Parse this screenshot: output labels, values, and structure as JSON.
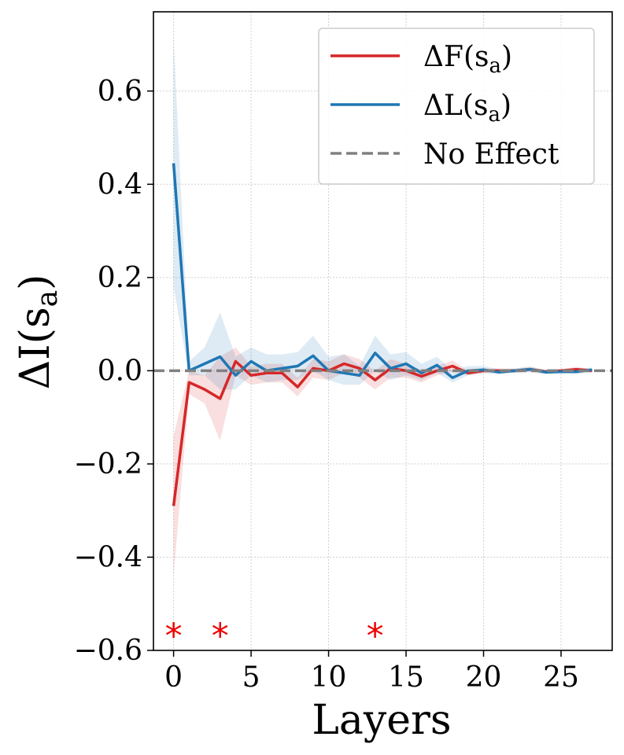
{
  "chart_data": {
    "type": "line",
    "xlabel": "Layers",
    "ylabel_base": "ΔI(s",
    "ylabel_sub": "a",
    "ylabel_close": ")",
    "xlim": [
      -1.3,
      28.3
    ],
    "ylim": [
      -0.6,
      0.77
    ],
    "xticks": [
      0,
      5,
      10,
      15,
      20,
      25
    ],
    "xtick_labels": [
      "0",
      "5",
      "10",
      "15",
      "20",
      "25"
    ],
    "yticks": [
      0.6,
      0.4,
      0.2,
      0.0,
      -0.2,
      -0.4,
      -0.6
    ],
    "ytick_labels": [
      "0.6",
      "0.4",
      "0.2",
      "0.0",
      "−0.2",
      "−0.4",
      "−0.6"
    ],
    "grid": true,
    "legend_position": "top-right",
    "series": [
      {
        "name": "ΔF(s_a)",
        "label_base": "ΔF(s",
        "label_sub": "a",
        "label_close": ")",
        "color": "#d62728",
        "x": [
          0,
          1,
          2,
          3,
          4,
          5,
          6,
          7,
          8,
          9,
          10,
          11,
          12,
          13,
          14,
          15,
          16,
          17,
          18,
          19,
          20,
          21,
          22,
          23,
          24,
          25,
          26,
          27
        ],
        "y": [
          -0.29,
          -0.025,
          -0.04,
          -0.06,
          0.02,
          -0.01,
          -0.005,
          -0.005,
          -0.035,
          0.005,
          0.0,
          0.015,
          0.005,
          -0.02,
          0.005,
          0.0,
          -0.012,
          0.0,
          0.01,
          -0.005,
          0.0,
          0.0,
          0.0,
          0.003,
          -0.002,
          0.0,
          0.003,
          0.0
        ],
        "band_lower": [
          -0.44,
          -0.05,
          -0.07,
          -0.15,
          -0.01,
          -0.03,
          -0.025,
          -0.025,
          -0.055,
          -0.015,
          -0.02,
          -0.005,
          -0.015,
          -0.04,
          -0.015,
          -0.015,
          -0.025,
          -0.01,
          -0.002,
          -0.01,
          -0.005,
          -0.005,
          -0.004,
          -0.002,
          -0.006,
          -0.004,
          -0.002,
          -0.004
        ],
        "band_upper": [
          -0.14,
          0.0,
          -0.01,
          0.03,
          0.05,
          0.01,
          0.015,
          0.015,
          -0.015,
          0.025,
          0.02,
          0.035,
          0.025,
          0.0,
          0.025,
          0.015,
          0.002,
          0.01,
          0.022,
          0.0,
          0.005,
          0.005,
          0.004,
          0.008,
          0.002,
          0.004,
          0.008,
          0.004
        ]
      },
      {
        "name": "ΔL(s_a)",
        "label_base": "ΔL(s",
        "label_sub": "a",
        "label_close": ")",
        "color": "#1f77b4",
        "x": [
          0,
          1,
          2,
          3,
          4,
          5,
          6,
          7,
          8,
          9,
          10,
          11,
          12,
          13,
          14,
          15,
          16,
          17,
          18,
          19,
          20,
          21,
          22,
          23,
          24,
          25,
          26,
          27
        ],
        "y": [
          0.445,
          0.0,
          0.015,
          0.03,
          -0.01,
          0.02,
          0.0,
          0.005,
          0.01,
          0.032,
          0.0,
          -0.005,
          -0.01,
          0.038,
          0.005,
          0.015,
          -0.005,
          0.012,
          -0.015,
          0.0,
          0.002,
          -0.003,
          0.0,
          0.003,
          -0.003,
          -0.002,
          -0.002,
          0.002
        ],
        "band_lower": [
          0.18,
          -0.01,
          -0.01,
          -0.04,
          -0.04,
          -0.01,
          -0.025,
          -0.02,
          -0.02,
          0.0,
          -0.02,
          -0.03,
          -0.03,
          0.0,
          -0.02,
          -0.01,
          -0.02,
          -0.005,
          -0.025,
          -0.01,
          -0.005,
          -0.008,
          -0.005,
          -0.003,
          -0.008,
          -0.006,
          -0.007,
          -0.003
        ],
        "band_upper": [
          0.715,
          0.02,
          0.05,
          0.125,
          0.03,
          0.05,
          0.035,
          0.035,
          0.04,
          0.075,
          0.03,
          0.035,
          0.01,
          0.075,
          0.035,
          0.04,
          0.015,
          0.03,
          0.0,
          0.01,
          0.01,
          0.003,
          0.005,
          0.009,
          0.002,
          0.003,
          0.004,
          0.007
        ]
      },
      {
        "name": "No Effect",
        "label_base": "No Effect",
        "label_sub": "",
        "label_close": "",
        "color": "#808080",
        "dash": true,
        "y_const": 0.0
      }
    ],
    "annotations": [
      {
        "text": "*",
        "x": 0,
        "y": -0.56,
        "color": "#ee0000"
      },
      {
        "text": "*",
        "x": 3,
        "y": -0.56,
        "color": "#ee0000"
      },
      {
        "text": "*",
        "x": 13,
        "y": -0.56,
        "color": "#ee0000"
      }
    ]
  }
}
